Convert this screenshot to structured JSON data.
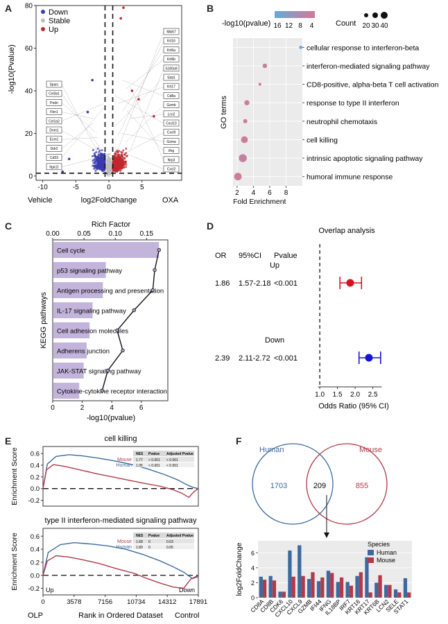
{
  "panel_letters": [
    "A",
    "B",
    "C",
    "D",
    "E",
    "F"
  ],
  "colors": {
    "down": "#3a3ab0",
    "stable": "#bdbdbd",
    "up": "#c0282d",
    "kegg_bar": "#c3b4dc",
    "human": "#3b6aa0",
    "mouse": "#b23a48"
  },
  "chart_data": [
    {
      "panel": "A",
      "type": "scatter",
      "xlabel": "log2FoldChange",
      "ylabel": "-log10(Pvalue)",
      "left_label": "Vehicle",
      "right_label": "OXA",
      "xlim": [
        -11,
        11
      ],
      "ylim": [
        -2,
        80
      ],
      "xticks": [
        -10,
        -5,
        0,
        5
      ],
      "yticks": [
        0,
        20,
        40,
        60,
        80
      ],
      "threshold_x": [
        -0.58,
        0.58
      ],
      "threshold_y": 1.3,
      "legend": [
        "Down",
        "Stable",
        "Up"
      ],
      "labels_down": [
        "Sparc",
        "Col3a1",
        "Podn",
        "Fbn1",
        "Col1a2",
        "Dnm1",
        "Ecm1",
        "Ddr2",
        "Cd33",
        "Itga11"
      ],
      "labels_up": [
        "Mki67",
        "Krt16",
        "Krt6a",
        "Krt6b",
        "S100a9",
        "Stat1",
        "Krt17",
        "Cd8a",
        "Gzmb",
        "Lcn2",
        "Cxcl10",
        "Cxcl9",
        "Gzma",
        "Ifng",
        "Nrp3",
        "Cxcl2"
      ]
    },
    {
      "panel": "B",
      "type": "scatter",
      "ylabel": "GO terms",
      "xlabel": "Fold Enrichment",
      "color_legend_title": "-log10(pvalue)",
      "color_ticks": [
        "16",
        "12",
        "8",
        "4"
      ],
      "size_legend_title": "Count",
      "size_ticks": [
        "20",
        "30",
        "40"
      ],
      "xticks": [
        2,
        4,
        6,
        8
      ],
      "xlim": [
        1.5,
        10
      ],
      "terms": [
        "cellular response to interferon-beta",
        "interferon-mediated signaling pathway",
        "CD8-positive, alpha-beta T cell activation",
        "response to type II interferon",
        "neutrophil chemotaxis",
        "cell killing",
        "intrinsic apoptotic signaling pathway",
        "humoral immune response"
      ],
      "fold_enrichment": [
        9.8,
        5.4,
        4.8,
        3.2,
        3.0,
        2.9,
        2.7,
        2.1
      ],
      "neg_log10_pvalue": [
        16,
        6,
        4,
        5,
        5,
        5,
        6,
        5
      ],
      "count": [
        20,
        25,
        18,
        28,
        24,
        35,
        40,
        38
      ]
    },
    {
      "panel": "C",
      "type": "bar",
      "ylabel": "KEGG pathways",
      "xlabel": "-log10(pvalue)",
      "top_axis_label": "Rich Factor",
      "xticks": [
        0,
        2,
        4,
        6
      ],
      "top_ticks": [
        "0.00",
        "0.05",
        "0.10",
        "0.15"
      ],
      "xlim": [
        0,
        7.8
      ],
      "top_lim": [
        0,
        0.184
      ],
      "categories": [
        "Cell cycle",
        "p53 signaling pathway",
        "Antigen processing and presentation",
        "IL-17 signaling pathway",
        "Cell adhesion molecules",
        "Adherens junction",
        "JAK-STAT signaling pathway",
        "Cytokine-cytokine receptor interaction"
      ],
      "values": [
        7.2,
        3.6,
        3.4,
        2.7,
        2.5,
        2.3,
        2.1,
        1.8
      ],
      "rich_factor": [
        0.17,
        0.163,
        0.16,
        0.13,
        0.103,
        0.112,
        0.088,
        0.079
      ]
    },
    {
      "panel": "D",
      "type": "scatter",
      "title": "Overlap analysis",
      "xlabel": "Odds Ratio (95% CI)",
      "headers": [
        "OR",
        "95%CI",
        "Pvalue"
      ],
      "xticks": [
        "1.0",
        "1.5",
        "2.0",
        "2.5"
      ],
      "xlim": [
        0.9,
        2.9
      ],
      "ref_line": 1.0,
      "rows": [
        {
          "label": "Up",
          "or_text": "1.86",
          "ci_text": "1.57-2.18",
          "p_text": "<0.001",
          "or": 1.86,
          "lo": 1.57,
          "hi": 2.18,
          "color": "#d4141c"
        },
        {
          "label": "Down",
          "or_text": "2.39",
          "ci_text": "2.11-2.72",
          "p_text": "<0.001",
          "or": 2.39,
          "lo": 2.11,
          "hi": 2.72,
          "color": "#1414d4"
        }
      ]
    },
    {
      "panel": "E",
      "type": "line",
      "ylabel": "Enrichment Score",
      "xlabel": "Rank in Ordered Dataset",
      "left_label": "OLP",
      "right_label": "Control",
      "xticks": [
        "0",
        "3578",
        "7156",
        "10734",
        "14312",
        "17891"
      ],
      "xlim": [
        0,
        17891
      ],
      "plots": [
        {
          "title": "cell killing",
          "yticks": [
            "0.6",
            "0.4",
            "0.2",
            "0.0",
            "-0.2"
          ],
          "ylim": [
            -0.3,
            0.72
          ],
          "table_header": [
            "NES",
            "Pvalue",
            "Adjusted Pvalue"
          ],
          "table_rows": [
            [
              "Mouse",
              "1.77",
              "< 0.001",
              "< 0.001"
            ],
            [
              "Human",
              "1.95",
              "< 0.001",
              "< 0.001"
            ]
          ],
          "series": [
            {
              "name": "Human",
              "x": [
                0,
                500,
                1500,
                3000,
                4500,
                6000,
                8000,
                10000,
                12000,
                14000,
                15500,
                16500,
                17300,
                17891
              ],
              "y": [
                0.0,
                0.42,
                0.55,
                0.58,
                0.56,
                0.53,
                0.48,
                0.42,
                0.34,
                0.24,
                0.15,
                0.07,
                0.02,
                0.0
              ]
            },
            {
              "name": "Mouse",
              "x": [
                0,
                400,
                1200,
                2500,
                4000,
                6000,
                8000,
                10000,
                12000,
                13500,
                15000,
                16000,
                16800,
                17400,
                17891
              ],
              "y": [
                0.0,
                0.32,
                0.41,
                0.38,
                0.33,
                0.26,
                0.2,
                0.14,
                0.08,
                0.04,
                -0.02,
                -0.08,
                -0.15,
                -0.05,
                0.0
              ]
            }
          ]
        },
        {
          "title": "type II interferon-mediated signaling pathway",
          "yticks": [
            "0.6",
            "0.4",
            "0.2",
            "0.0",
            "-0.2"
          ],
          "ylim": [
            -0.3,
            0.72
          ],
          "table_header": [
            "NES",
            "Pvalue",
            "Adjusted Pvalue"
          ],
          "table_rows": [
            [
              "Mouse",
              "1.68",
              "0",
              "0.03"
            ],
            [
              "Human",
              "1.89",
              "0",
              "0.05"
            ]
          ],
          "up_label": "Up",
          "down_label": "Down",
          "series": [
            {
              "name": "Human",
              "x": [
                0,
                600,
                2000,
                3578,
                5500,
                7500,
                9500,
                11500,
                13500,
                15000,
                16300,
                17200,
                17891
              ],
              "y": [
                0.0,
                0.35,
                0.47,
                0.5,
                0.48,
                0.45,
                0.4,
                0.32,
                0.22,
                0.13,
                0.04,
                -0.05,
                -0.02
              ]
            },
            {
              "name": "Mouse",
              "x": [
                0,
                500,
                1500,
                3000,
                4500,
                6500,
                8500,
                10500,
                12000,
                13500,
                15000,
                16200,
                17000,
                17891
              ],
              "y": [
                0.0,
                0.22,
                0.3,
                0.28,
                0.24,
                0.18,
                0.1,
                0.03,
                -0.05,
                -0.12,
                -0.18,
                -0.2,
                -0.06,
                0.0
              ]
            }
          ]
        }
      ]
    },
    {
      "panel": "F",
      "type": "bar",
      "venn": {
        "left_label": "Human",
        "right_label": "Mouse",
        "left_only": "1703",
        "overlap": "209",
        "right_only": "855"
      },
      "ylabel": "log2FoldChange",
      "legend_title": "Species",
      "yticks": [
        0,
        2,
        4,
        6
      ],
      "ylim": [
        0,
        7.6
      ],
      "categories": [
        "CD8A",
        "CD8B",
        "CDK6",
        "CXCL10",
        "CXCL9",
        "GZMB",
        "IFI44",
        "IFNG",
        "IL18BP",
        "IRF7",
        "KRT16",
        "KRT17",
        "KRT6B",
        "LCN2",
        "SELE",
        "STAT1"
      ],
      "series": [
        {
          "name": "Human",
          "values": [
            2.8,
            2.9,
            0.8,
            6.3,
            7.0,
            2.5,
            2.2,
            3.6,
            2.1,
            2.1,
            2.9,
            5.4,
            2.0,
            1.7,
            1.1,
            2.6
          ]
        },
        {
          "name": "Mouse",
          "values": [
            2.4,
            2.3,
            0.8,
            2.8,
            2.9,
            3.4,
            2.7,
            3.3,
            2.7,
            1.6,
            3.4,
            0.7,
            3.0,
            1.7,
            0.7,
            0.7
          ]
        }
      ]
    }
  ]
}
